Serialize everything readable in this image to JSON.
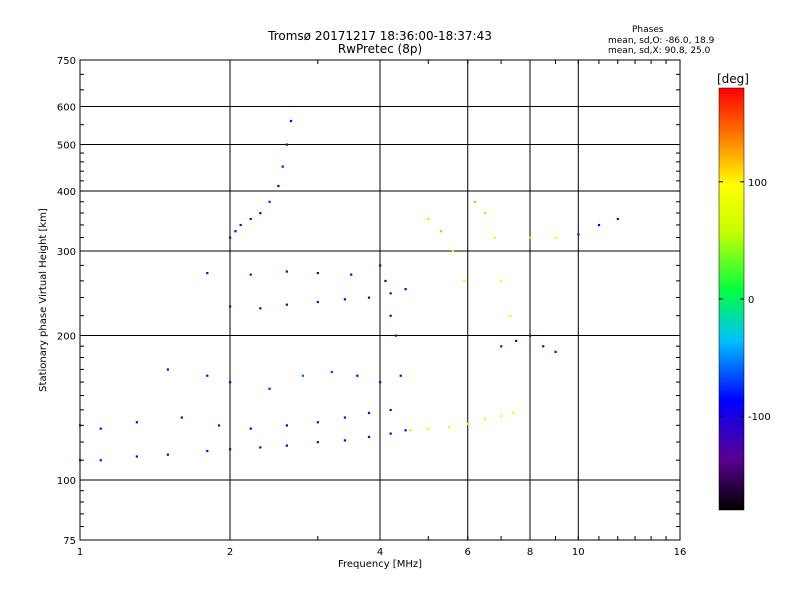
{
  "chart_data": {
    "type": "scatter",
    "title": "Tromsø 20171217 18:36:00-18:37:43",
    "subtitle": "RwPretec (8p)",
    "stats": {
      "heading": "Phases",
      "line_o": "mean, sd,O: -86.0, 18.9",
      "line_x": "mean, sd,X:  90.8, 25.0"
    },
    "xlabel": "Frequency [MHz]",
    "ylabel": "Stationary phase Virtual Height [km]",
    "x_scale": "log",
    "y_scale": "log",
    "xlim": [
      1,
      16
    ],
    "ylim": [
      75,
      750
    ],
    "x_ticks": [
      1,
      2,
      4,
      6,
      8,
      10,
      16
    ],
    "x_tick_labels": [
      "1",
      "2",
      "4",
      "6",
      "8",
      "10",
      "16"
    ],
    "y_ticks": [
      75,
      100,
      200,
      300,
      400,
      500,
      600,
      750
    ],
    "y_tick_labels": [
      "75",
      "100",
      "200",
      "300",
      "400",
      "500",
      "600",
      "750"
    ],
    "grid": true,
    "colorbar": {
      "label": "[deg]",
      "range": [
        -180,
        180
      ],
      "ticks": [
        100,
        0,
        -100
      ],
      "tick_labels": [
        "100",
        "0",
        "-100"
      ]
    },
    "series": [
      {
        "x": [
          1.0,
          1.1,
          1.3,
          1.5,
          1.8,
          2.0,
          2.3,
          2.6,
          3.0,
          3.4,
          3.8,
          4.2,
          4.5
        ],
        "y": [
          110,
          110,
          112,
          113,
          115,
          116,
          117,
          118,
          120,
          121,
          123,
          125,
          127
        ],
        "phase": [
          -100,
          -100,
          -100,
          -95,
          -100,
          -105,
          -95,
          -100,
          -100,
          -95,
          -100,
          -100,
          -95
        ]
      },
      {
        "x": [
          4.6,
          5.0,
          5.5,
          6.0,
          6.5,
          7.0,
          7.4
        ],
        "y": [
          127,
          128,
          129,
          131,
          134,
          136,
          138
        ],
        "phase": [
          60,
          80,
          90,
          100,
          90,
          95,
          85
        ]
      },
      {
        "x": [
          1.0,
          1.1,
          1.3
        ],
        "y": [
          130,
          128,
          132
        ],
        "phase": [
          -100,
          -100,
          -95
        ]
      },
      {
        "x": [
          1.5,
          1.8,
          2.0,
          2.4,
          2.8,
          3.2,
          3.6,
          4.0,
          4.4
        ],
        "y": [
          170,
          165,
          160,
          155,
          165,
          168,
          165,
          160,
          165
        ],
        "phase": [
          -100,
          -105,
          -95,
          -80,
          -60,
          -70,
          -90,
          -100,
          -95
        ]
      },
      {
        "x": [
          1.6,
          1.9,
          2.2,
          2.6,
          3.0,
          3.4,
          3.8,
          4.2
        ],
        "y": [
          135,
          130,
          128,
          130,
          132,
          135,
          138,
          140
        ],
        "phase": [
          -110,
          -100,
          -90,
          -100,
          -95,
          -110,
          -100,
          -90
        ]
      },
      {
        "x": [
          2.0,
          2.05,
          2.1,
          2.2,
          2.3,
          2.4,
          2.5,
          2.55,
          2.6,
          2.65
        ],
        "y": [
          320,
          330,
          340,
          350,
          360,
          380,
          410,
          450,
          500,
          560
        ],
        "phase": [
          -100,
          -90,
          -100,
          -95,
          -100,
          -80,
          -90,
          -95,
          -100,
          -90
        ]
      },
      {
        "x": [
          2.0,
          2.3,
          2.6,
          3.0,
          3.4,
          3.8,
          4.2,
          4.5
        ],
        "y": [
          230,
          228,
          232,
          235,
          238,
          240,
          245,
          250
        ],
        "phase": [
          -100,
          -95,
          -110,
          -100,
          -90,
          -105,
          -100,
          -95
        ]
      },
      {
        "x": [
          1.8,
          2.2,
          2.6,
          3.0,
          3.5
        ],
        "y": [
          270,
          268,
          272,
          270,
          268
        ],
        "phase": [
          -100,
          -110,
          -95,
          -100,
          -105
        ]
      },
      {
        "x": [
          4.0,
          4.1,
          4.2,
          4.3
        ],
        "y": [
          280,
          260,
          220,
          200
        ],
        "phase": [
          -100,
          -95,
          -100,
          -110
        ]
      },
      {
        "x": [
          5.0,
          5.3,
          5.6,
          5.9
        ],
        "y": [
          350,
          330,
          300,
          260
        ],
        "phase": [
          110,
          120,
          100,
          90
        ]
      },
      {
        "x": [
          6.2,
          6.5,
          6.8,
          7.0,
          7.3
        ],
        "y": [
          380,
          360,
          320,
          260,
          220
        ],
        "phase": [
          120,
          110,
          100,
          90,
          80
        ]
      },
      {
        "x": [
          7.0,
          7.5,
          8.0,
          8.5,
          9.0
        ],
        "y": [
          190,
          195,
          200,
          190,
          185
        ],
        "phase": [
          -110,
          -100,
          -120,
          -105,
          -100
        ]
      },
      {
        "x": [
          8.0,
          9.0,
          10.0,
          11.0,
          12.0
        ],
        "y": [
          320,
          320,
          325,
          340,
          350
        ],
        "phase": [
          110,
          100,
          -100,
          -90,
          -100
        ]
      }
    ]
  }
}
